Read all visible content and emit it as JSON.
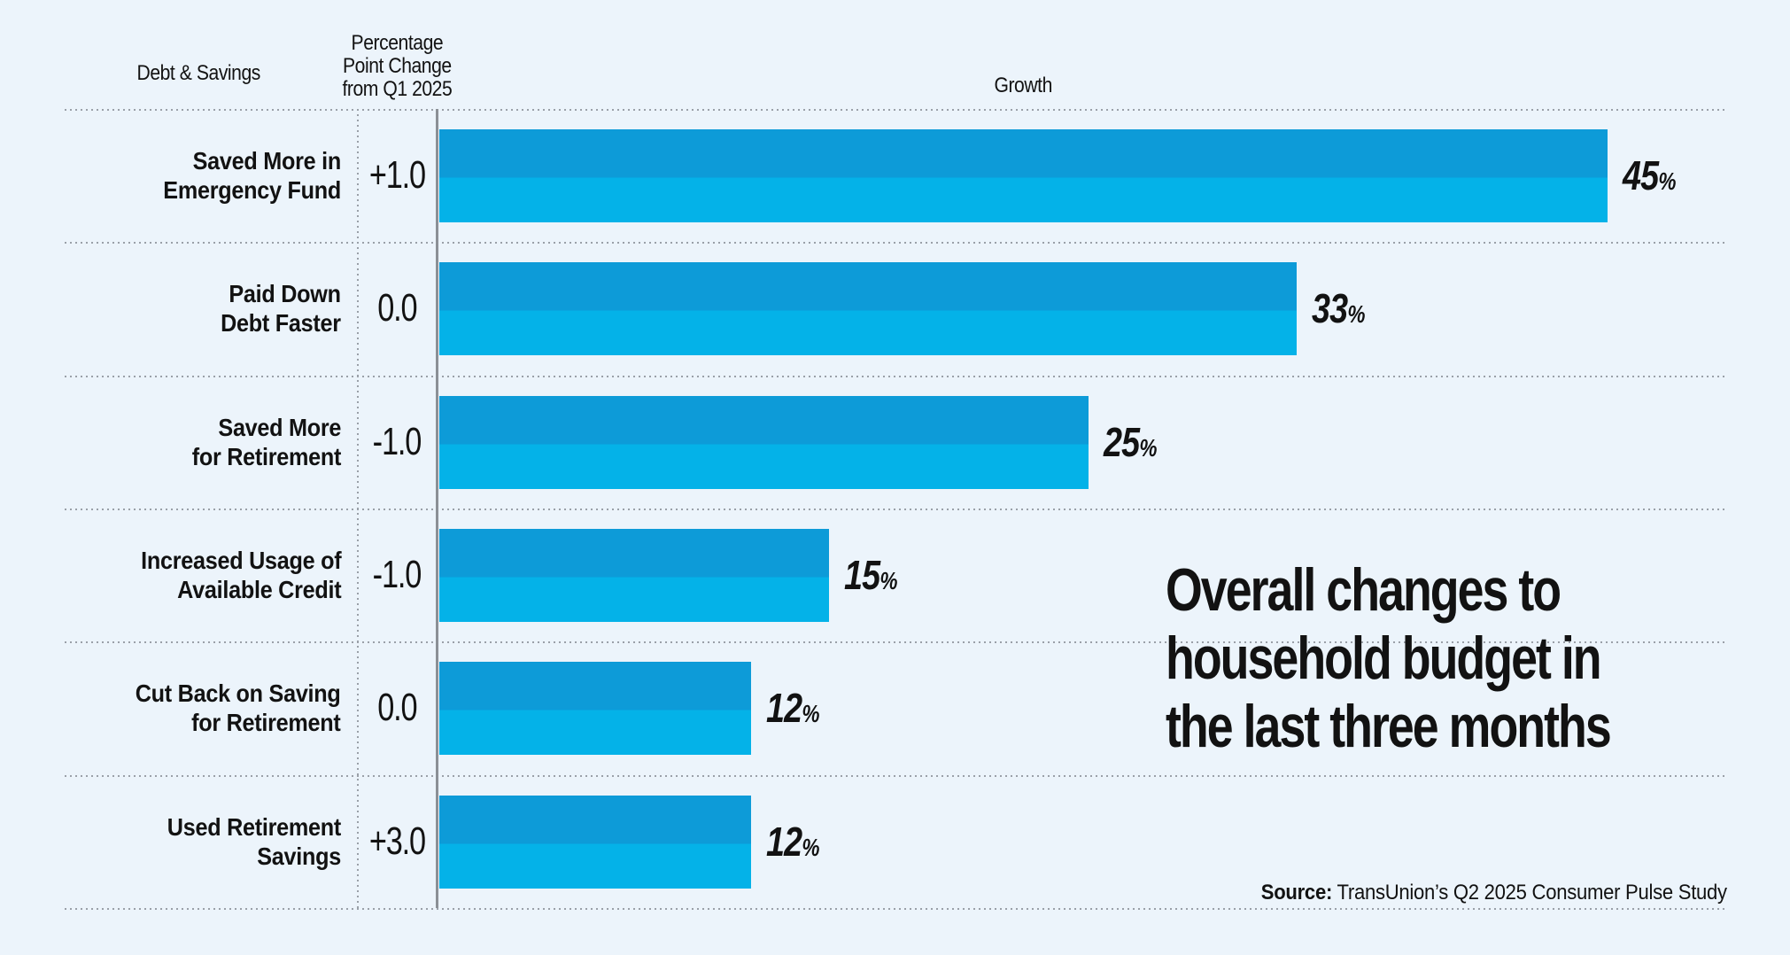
{
  "chart_data": {
    "type": "bar",
    "orientation": "horizontal",
    "title": "Overall changes to household budget in the last three months",
    "title_lines": [
      "Overall changes to",
      "household budget in",
      "the last three months"
    ],
    "columns": {
      "category": "Debt & Savings",
      "change_lines": [
        "Percentage",
        "Point Change",
        "from Q1 2025"
      ],
      "growth": "Growth"
    },
    "categories": [
      "Saved More in Emergency Fund",
      "Paid Down Debt Faster",
      "Saved More for Retirement",
      "Increased Usage of Available Credit",
      "Cut Back on Saving for Retirement",
      "Used Retirement Savings"
    ],
    "values": [
      45,
      33,
      25,
      15,
      12,
      12
    ],
    "changes": [
      "+1.0",
      "0.0",
      "-1.0",
      "-1.0",
      "0.0",
      "+3.0"
    ],
    "rows": [
      {
        "label_lines": [
          "Saved More in",
          "Emergency Fund"
        ],
        "change": "+1.0",
        "value": 45,
        "value_label": "45%"
      },
      {
        "label_lines": [
          "Paid Down",
          "Debt Faster"
        ],
        "change": "0.0",
        "value": 33,
        "value_label": "33%"
      },
      {
        "label_lines": [
          "Saved More",
          "for Retirement"
        ],
        "change": "-1.0",
        "value": 25,
        "value_label": "25%"
      },
      {
        "label_lines": [
          "Increased Usage of",
          "Available Credit"
        ],
        "change": "-1.0",
        "value": 15,
        "value_label": "15%"
      },
      {
        "label_lines": [
          "Cut Back on Saving",
          "for Retirement"
        ],
        "change": "0.0",
        "value": 12,
        "value_label": "12%"
      },
      {
        "label_lines": [
          "Used Retirement",
          "Savings"
        ],
        "change": "+3.0",
        "value": 12,
        "value_label": "12%"
      }
    ],
    "xlim": [
      0,
      50
    ],
    "grid": "dotted-row-separators",
    "source": {
      "prefix": "Source:",
      "text": " TransUnion’s Q2 2025 Consumer Pulse Study"
    },
    "colors": {
      "background": "#ecf4fb",
      "bar_top": "#0d9bd8",
      "bar_bottom": "#04b2e8",
      "axis": "#8b9096",
      "grid_dots": "#9aa0a8",
      "text": "#121212"
    }
  }
}
